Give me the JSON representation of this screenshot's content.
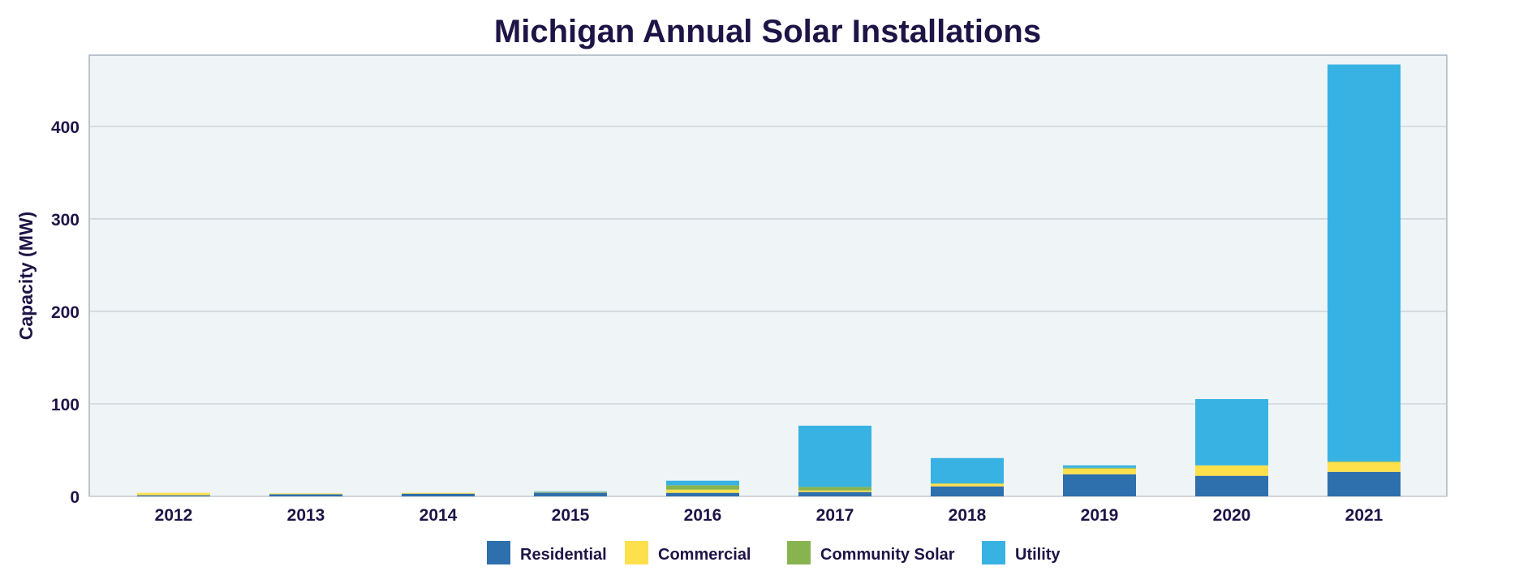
{
  "chart_data": {
    "type": "bar",
    "stacked": true,
    "title": "Michigan Annual Solar Installations",
    "xlabel": "",
    "ylabel": "Capacity (MW)",
    "ylim": [
      0,
      477
    ],
    "yticks": [
      0,
      100,
      200,
      300,
      400
    ],
    "grid": true,
    "legend_position": "bottom",
    "categories": [
      "2012",
      "2013",
      "2014",
      "2015",
      "2016",
      "2017",
      "2018",
      "2019",
      "2020",
      "2021"
    ],
    "series": [
      {
        "name": "Residential",
        "color": "#2e6fad",
        "values": [
          1.2,
          2.3,
          2.9,
          4.1,
          3.8,
          4.7,
          10.8,
          23.9,
          22.2,
          26.5
        ]
      },
      {
        "name": "Commercial",
        "color": "#fee04c",
        "values": [
          2.6,
          0.9,
          0.9,
          0.6,
          3.5,
          1.7,
          2.9,
          6.1,
          11.3,
          10.5
        ]
      },
      {
        "name": "Community Solar",
        "color": "#88b44f",
        "values": [
          0,
          0,
          0,
          0.3,
          4.7,
          3.8,
          0.3,
          0.9,
          0,
          0.9
        ]
      },
      {
        "name": "Utility",
        "color": "#38b2e3",
        "values": [
          0,
          0,
          0,
          0.5,
          4.9,
          66.2,
          27.4,
          2.6,
          71.7,
          429
        ]
      }
    ],
    "colors": {
      "plot_background": "#eff4f7",
      "gridline": "#c8ccd2",
      "text": "#1f1446"
    }
  }
}
